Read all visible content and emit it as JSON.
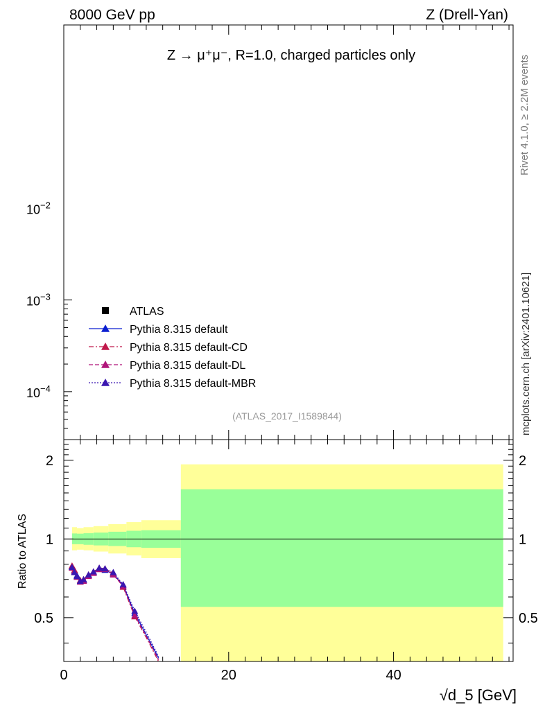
{
  "header": {
    "left": "8000 GeV pp",
    "right": "Z (Drell-Yan)"
  },
  "side_labels": {
    "rivet": "Rivet 4.1.0, ≥ 2.2M events",
    "mcplots": "mcplots.cern.ch [arXiv:2401.10621]"
  },
  "colors": {
    "atlas": "#000000",
    "default": "#0b1fd0",
    "cd": "#c0184a",
    "dl": "#b0157a",
    "mbr": "#3a16b0",
    "band_inner": "#99ff99",
    "band_outer": "#ffff99"
  },
  "chart_data": [
    {
      "type": "line",
      "panel": "main",
      "title": "Z → μ⁺μ⁻, R=1.0, charged particles only",
      "analysis_id": "(ATLAS_2017_I1589844)",
      "yscale": "log",
      "ylim": [
        3e-05,
        1.0
      ],
      "y_tick_labels": [
        {
          "value": 0.01,
          "base": "10",
          "exp": "−2"
        },
        {
          "value": 0.001,
          "base": "10",
          "exp": "−3"
        },
        {
          "value": 0.0001,
          "base": "10",
          "exp": "−4"
        }
      ],
      "legend": {
        "position": "lower-left",
        "entries": [
          {
            "label": "ATLAS",
            "marker": "square",
            "line": "none",
            "color_key": "atlas"
          },
          {
            "label": "Pythia 8.315 default",
            "marker": "triangle",
            "line": "solid",
            "color_key": "default"
          },
          {
            "label": "Pythia 8.315 default-CD",
            "marker": "triangle",
            "line": "dashdot",
            "color_key": "cd"
          },
          {
            "label": "Pythia 8.315 default-DL",
            "marker": "triangle",
            "line": "dashed",
            "color_key": "dl"
          },
          {
            "label": "Pythia 8.315 default-MBR",
            "marker": "triangle",
            "line": "dotted",
            "color_key": "mbr"
          }
        ]
      }
    },
    {
      "type": "line",
      "panel": "ratio",
      "ylabel": "Ratio to ATLAS",
      "xlabel": "√d_5 [GeV]",
      "xlim": [
        0,
        54.5
      ],
      "ylim": [
        0.34,
        2.4
      ],
      "x_ticks": [
        0,
        20,
        40
      ],
      "y_ticks": [
        0.5,
        1,
        2
      ],
      "reference_line": 1,
      "bands": [
        {
          "x0": 1.0,
          "x1": 1.6,
          "inner_lo": 0.955,
          "inner_hi": 1.05,
          "outer_lo": 0.905,
          "outer_hi": 1.11
        },
        {
          "x0": 1.6,
          "x1": 2.4,
          "inner_lo": 0.955,
          "inner_hi": 1.048,
          "outer_lo": 0.91,
          "outer_hi": 1.1
        },
        {
          "x0": 2.4,
          "x1": 3.6,
          "inner_lo": 0.95,
          "inner_hi": 1.052,
          "outer_lo": 0.905,
          "outer_hi": 1.11
        },
        {
          "x0": 3.6,
          "x1": 5.4,
          "inner_lo": 0.945,
          "inner_hi": 1.058,
          "outer_lo": 0.895,
          "outer_hi": 1.12
        },
        {
          "x0": 5.4,
          "x1": 7.6,
          "inner_lo": 0.94,
          "inner_hi": 1.066,
          "outer_lo": 0.88,
          "outer_hi": 1.14
        },
        {
          "x0": 7.6,
          "x1": 9.4,
          "inner_lo": 0.93,
          "inner_hi": 1.075,
          "outer_lo": 0.865,
          "outer_hi": 1.16
        },
        {
          "x0": 9.4,
          "x1": 14.2,
          "inner_lo": 0.925,
          "inner_hi": 1.08,
          "outer_lo": 0.845,
          "outer_hi": 1.18
        },
        {
          "x0": 14.2,
          "x1": 53.3,
          "inner_lo": 0.55,
          "inner_hi": 1.55,
          "outer_lo": 0.3,
          "outer_hi": 1.93
        }
      ],
      "series": [
        {
          "name": "Pythia 8.315 default",
          "color_key": "default",
          "dash": "none",
          "x": [
            1.0,
            1.3,
            1.6,
            2.0,
            2.4,
            3.0,
            3.6,
            4.3,
            5.0,
            6.0,
            7.2,
            8.6,
            10.0,
            11.5
          ],
          "y": [
            0.785,
            0.755,
            0.725,
            0.69,
            0.695,
            0.725,
            0.745,
            0.77,
            0.76,
            0.735,
            0.665,
            0.52,
            0.43,
            0.35
          ]
        },
        {
          "name": "Pythia 8.315 default-CD",
          "color_key": "cd",
          "dash": "7 3 2 3",
          "x": [
            1.0,
            1.3,
            1.6,
            2.0,
            2.4,
            3.0,
            3.6,
            4.3,
            5.0,
            6.0,
            7.2,
            8.6,
            10.0,
            11.5
          ],
          "y": [
            0.79,
            0.76,
            0.72,
            0.695,
            0.7,
            0.73,
            0.75,
            0.775,
            0.77,
            0.74,
            0.655,
            0.505,
            0.42,
            0.34
          ]
        },
        {
          "name": "Pythia 8.315 default-DL",
          "color_key": "dl",
          "dash": "6 3",
          "x": [
            1.0,
            1.3,
            1.6,
            2.0,
            2.4,
            3.0,
            3.6,
            4.3,
            5.0,
            6.0,
            7.2,
            8.6,
            10.0,
            11.5
          ],
          "y": [
            0.775,
            0.75,
            0.715,
            0.685,
            0.69,
            0.72,
            0.74,
            0.765,
            0.765,
            0.73,
            0.66,
            0.51,
            0.425,
            0.345
          ]
        },
        {
          "name": "Pythia 8.315 default-MBR",
          "color_key": "mbr",
          "dash": "2 2",
          "x": [
            1.0,
            1.3,
            1.6,
            2.0,
            2.4,
            3.0,
            3.6,
            4.3,
            5.0,
            6.0,
            7.2,
            8.6,
            10.0,
            11.5
          ],
          "y": [
            0.78,
            0.745,
            0.72,
            0.69,
            0.7,
            0.73,
            0.75,
            0.775,
            0.77,
            0.745,
            0.67,
            0.53,
            0.44,
            0.355
          ]
        }
      ]
    }
  ]
}
